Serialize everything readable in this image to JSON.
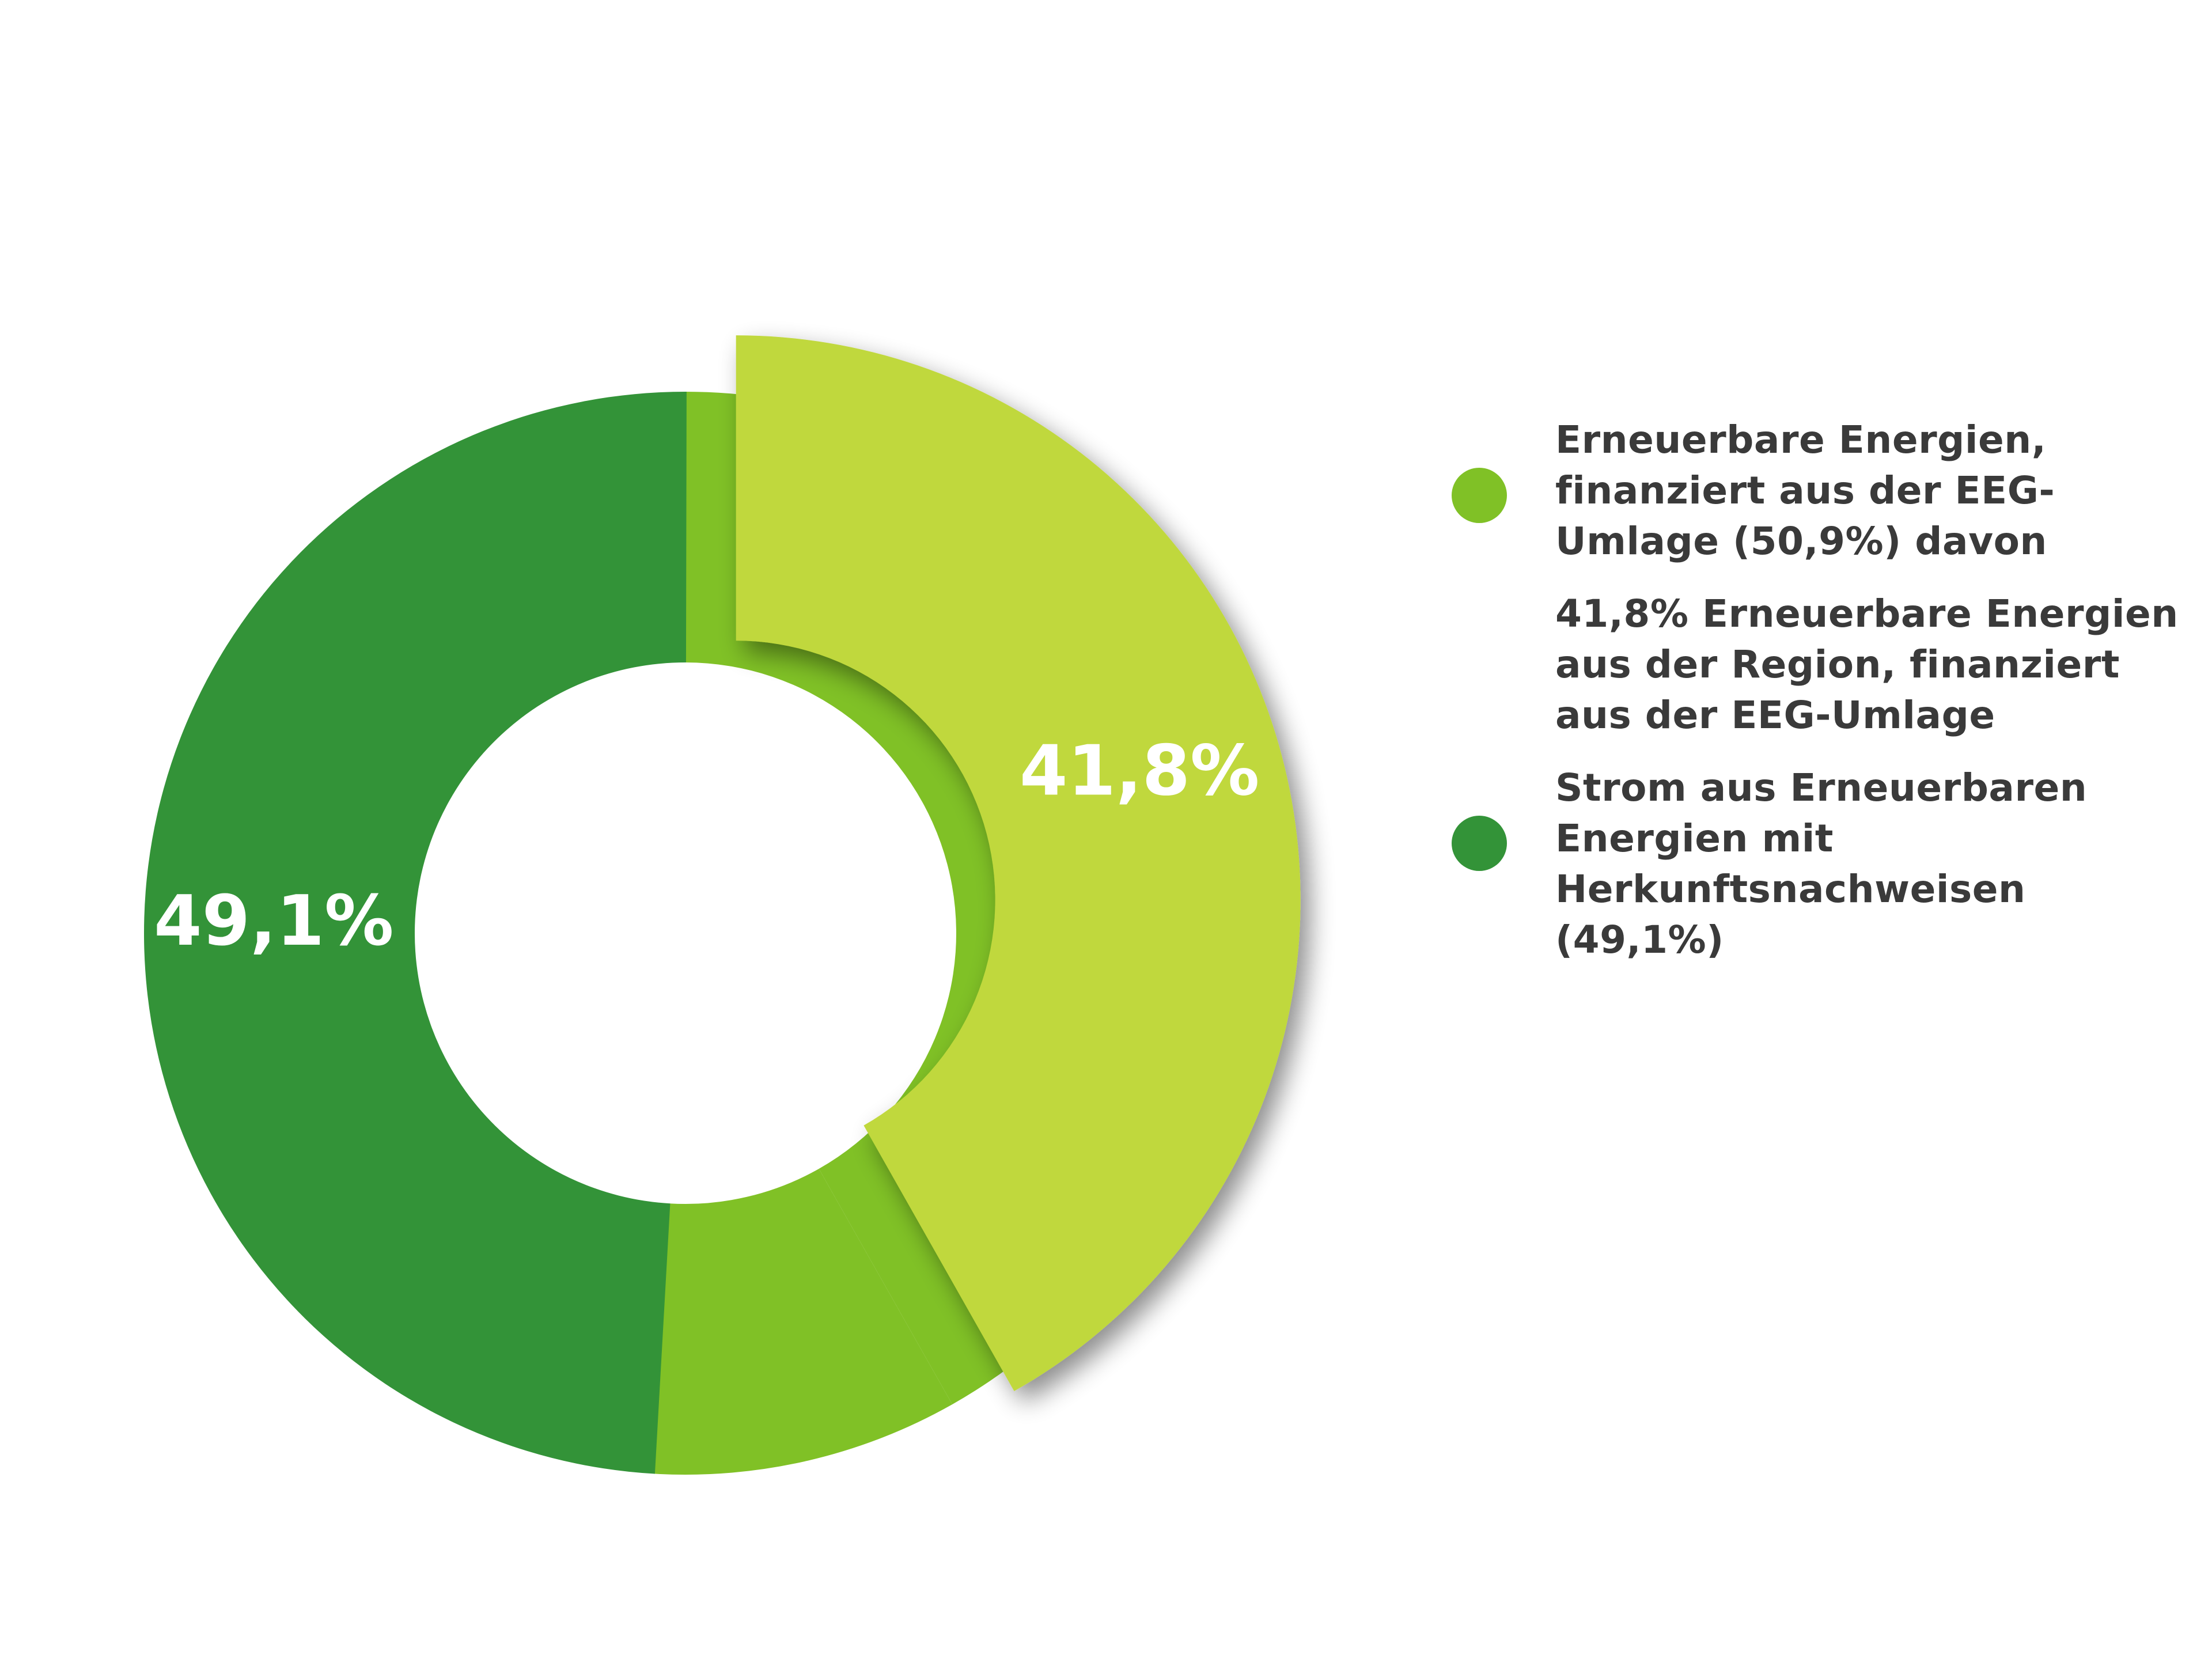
{
  "chart_data": {
    "type": "pie",
    "variant": "donut",
    "slices": [
      {
        "key": "eeg-rest",
        "value": 9.1,
        "color": "#80c126",
        "label": ""
      },
      {
        "key": "herkunft",
        "value": 49.1,
        "color": "#339338",
        "label": "49,1%"
      }
    ],
    "exploded_slice": {
      "key": "region",
      "value": 41.8,
      "color": "#c0d83d",
      "label": "41,8%"
    },
    "legend": [
      {
        "key": "eeg",
        "color": "#80c126",
        "text": "Erneuerbare Energien, finanziert aus der EEG-Umlage (50,9%) davon"
      },
      {
        "key": "region",
        "color": "",
        "text": "41,8% Erneuerbare Energien aus der Region, finanziert aus der EEG-Umlage"
      },
      {
        "key": "herkunft",
        "color": "#339338",
        "text": "Strom aus Erneuerbaren Energien mit Herkunftsnachweisen (49,1%)"
      }
    ],
    "legend_position": "right",
    "label_color": "#ffffff"
  }
}
